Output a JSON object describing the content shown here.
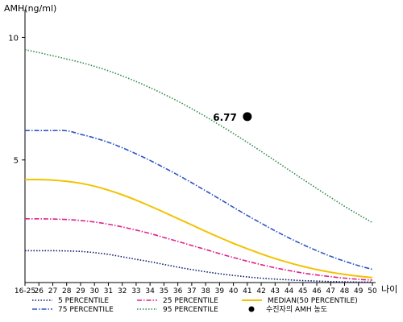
{
  "chart_data": {
    "type": "line",
    "title": "",
    "ylabel": "AMH(ng/ml)",
    "xlabel": "나이",
    "ylim": [
      0,
      11
    ],
    "ytick_values": [
      5,
      10
    ],
    "ytick_labels": [
      "5",
      "10"
    ],
    "categories": [
      "16-25",
      "26",
      "27",
      "28",
      "29",
      "30",
      "31",
      "32",
      "33",
      "34",
      "35",
      "36",
      "37",
      "38",
      "39",
      "40",
      "41",
      "42",
      "43",
      "44",
      "45",
      "46",
      "47",
      "48",
      "49",
      "50"
    ],
    "grid": false,
    "legend_position": "bottom",
    "series": [
      {
        "name": "5 PERCENTILE",
        "color": "#0a1a6e",
        "style": "dotted",
        "values": [
          1.3,
          1.3,
          1.3,
          1.29,
          1.27,
          1.22,
          1.15,
          1.05,
          0.95,
          0.85,
          0.74,
          0.63,
          0.53,
          0.44,
          0.36,
          0.29,
          0.23,
          0.18,
          0.14,
          0.11,
          0.08,
          0.06,
          0.04,
          0.03,
          0.02,
          0.02
        ]
      },
      {
        "name": "25 PERCENTILE",
        "color": "#e0218a",
        "style": "dashdot",
        "values": [
          2.6,
          2.6,
          2.59,
          2.57,
          2.53,
          2.47,
          2.38,
          2.27,
          2.14,
          2.0,
          1.84,
          1.68,
          1.51,
          1.35,
          1.18,
          1.02,
          0.87,
          0.73,
          0.6,
          0.49,
          0.39,
          0.31,
          0.24,
          0.18,
          0.13,
          0.1
        ]
      },
      {
        "name": "MEDIAN(50 PERCENTILE)",
        "color": "#f2c200",
        "style": "solid",
        "values": [
          4.2,
          4.2,
          4.18,
          4.13,
          4.05,
          3.93,
          3.77,
          3.58,
          3.36,
          3.12,
          2.87,
          2.61,
          2.35,
          2.09,
          1.84,
          1.6,
          1.38,
          1.17,
          0.98,
          0.81,
          0.66,
          0.53,
          0.42,
          0.33,
          0.26,
          0.2
        ]
      },
      {
        "name": "75 PERCENTILE",
        "color": "#2f55c4",
        "style": "dashdot",
        "values": [
          6.2,
          6.2,
          6.2,
          6.19,
          6.05,
          5.9,
          5.72,
          5.5,
          5.25,
          4.98,
          4.69,
          4.39,
          4.07,
          3.74,
          3.41,
          3.07,
          2.74,
          2.42,
          2.11,
          1.82,
          1.55,
          1.3,
          1.07,
          0.87,
          0.69,
          0.54
        ]
      },
      {
        "name": "95 PERCENTILE",
        "color": "#2f8a4a",
        "style": "dotted",
        "values": [
          9.5,
          9.38,
          9.25,
          9.12,
          8.98,
          8.82,
          8.64,
          8.43,
          8.2,
          7.95,
          7.68,
          7.4,
          7.09,
          6.77,
          6.43,
          6.08,
          5.72,
          5.35,
          4.97,
          4.59,
          4.21,
          3.84,
          3.47,
          3.11,
          2.77,
          2.45
        ]
      }
    ],
    "highlight_point": {
      "name": "수진자의 AMH 농도",
      "x": "41",
      "y": 6.77,
      "label": "6.77",
      "color": "#000000"
    }
  }
}
